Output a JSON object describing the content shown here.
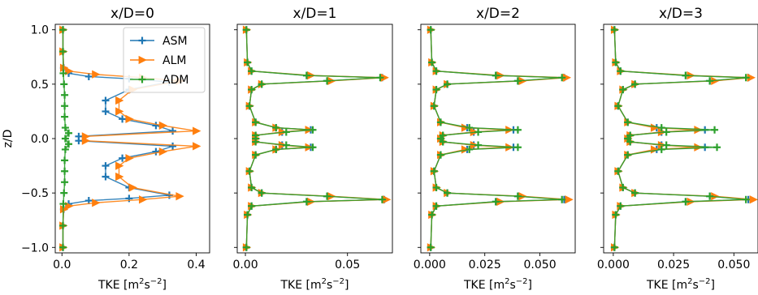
{
  "chart_data": [
    {
      "type": "line",
      "title": "x/D=0",
      "xlabel": "TKE [m$^2$s$^{-2}$]",
      "ylabel": "z/D",
      "xlim": [
        -0.02,
        0.44
      ],
      "ylim": [
        -1.05,
        1.05
      ],
      "xticks": [
        0.0,
        0.2,
        0.4
      ],
      "xticklabels": [
        "0.0",
        "0.2",
        "0.4"
      ],
      "yticks": [
        -1.0,
        -0.5,
        0.0,
        0.5,
        1.0
      ],
      "yticklabels": [
        "−1.0",
        "−0.5",
        "0.0",
        "0.5",
        "1.0"
      ],
      "legend": {
        "position": "top-right",
        "entries": [
          "ASM",
          "ALM",
          "ADM"
        ]
      },
      "series": [
        {
          "name": "ASM",
          "color": "#1f77b4",
          "marker": "plus",
          "z": [
            1.0,
            0.8,
            0.65,
            0.6,
            0.57,
            0.55,
            0.52,
            0.45,
            0.35,
            0.25,
            0.18,
            0.12,
            0.07,
            0.02,
            -0.02,
            -0.07,
            -0.12,
            -0.18,
            -0.25,
            -0.35,
            -0.45,
            -0.52,
            -0.55,
            -0.57,
            -0.6,
            -0.65,
            -0.8,
            -1.0
          ],
          "values": [
            0.003,
            0.003,
            0.005,
            0.02,
            0.08,
            0.2,
            0.32,
            0.2,
            0.13,
            0.13,
            0.18,
            0.28,
            0.33,
            0.05,
            0.05,
            0.33,
            0.28,
            0.18,
            0.13,
            0.13,
            0.2,
            0.32,
            0.2,
            0.08,
            0.02,
            0.005,
            0.003,
            0.003
          ]
        },
        {
          "name": "ALM",
          "color": "#ff7f0e",
          "marker": "triangle-right",
          "z": [
            1.0,
            0.8,
            0.65,
            0.62,
            0.59,
            0.56,
            0.53,
            0.45,
            0.35,
            0.25,
            0.18,
            0.12,
            0.07,
            0.02,
            -0.02,
            -0.07,
            -0.12,
            -0.18,
            -0.25,
            -0.35,
            -0.45,
            -0.53,
            -0.56,
            -0.59,
            -0.62,
            -0.65,
            -0.8,
            -1.0
          ],
          "values": [
            0.003,
            0.003,
            0.005,
            0.02,
            0.1,
            0.24,
            0.35,
            0.21,
            0.17,
            0.17,
            0.2,
            0.3,
            0.4,
            0.07,
            0.07,
            0.4,
            0.3,
            0.2,
            0.17,
            0.17,
            0.21,
            0.35,
            0.24,
            0.1,
            0.02,
            0.005,
            0.003,
            0.003
          ]
        },
        {
          "name": "ADM",
          "color": "#2ca02c",
          "marker": "plus",
          "z": [
            1.0,
            0.8,
            0.6,
            0.5,
            0.4,
            0.3,
            0.2,
            0.1,
            0.05,
            0.0,
            -0.05,
            -0.1,
            -0.2,
            -0.3,
            -0.4,
            -0.5,
            -0.6,
            -0.8,
            -1.0
          ],
          "values": [
            0.003,
            0.003,
            0.004,
            0.006,
            0.008,
            0.008,
            0.008,
            0.01,
            0.02,
            0.01,
            0.02,
            0.01,
            0.008,
            0.008,
            0.008,
            0.006,
            0.004,
            0.003,
            0.003
          ]
        }
      ]
    },
    {
      "type": "line",
      "title": "x/D=1",
      "xlabel": "TKE [m$^2$s$^{-2}$]",
      "xlim": [
        -0.004,
        0.072
      ],
      "ylim": [
        -1.05,
        1.05
      ],
      "xticks": [
        0.0,
        0.05
      ],
      "xticklabels": [
        "0.00",
        "0.05"
      ],
      "series": [
        {
          "name": "ASM",
          "color": "#1f77b4",
          "marker": "plus",
          "z": [
            1.0,
            0.7,
            0.62,
            0.58,
            0.56,
            0.53,
            0.5,
            0.45,
            0.3,
            0.15,
            0.1,
            0.08,
            0.06,
            0.03,
            0.0,
            -0.03,
            -0.06,
            -0.08,
            -0.1,
            -0.15,
            -0.3,
            -0.45,
            -0.5,
            -0.53,
            -0.56,
            -0.58,
            -0.62,
            -0.7,
            -1.0
          ],
          "values": [
            0.0005,
            0.001,
            0.003,
            0.03,
            0.067,
            0.04,
            0.008,
            0.003,
            0.002,
            0.005,
            0.015,
            0.032,
            0.018,
            0.005,
            0.005,
            0.005,
            0.018,
            0.032,
            0.015,
            0.005,
            0.002,
            0.003,
            0.008,
            0.04,
            0.068,
            0.03,
            0.003,
            0.001,
            0.0005
          ]
        },
        {
          "name": "ALM",
          "color": "#ff7f0e",
          "marker": "triangle-right",
          "z": [
            1.0,
            0.7,
            0.62,
            0.58,
            0.56,
            0.53,
            0.5,
            0.45,
            0.3,
            0.15,
            0.1,
            0.08,
            0.06,
            0.03,
            0.0,
            -0.03,
            -0.06,
            -0.08,
            -0.1,
            -0.15,
            -0.3,
            -0.45,
            -0.5,
            -0.53,
            -0.56,
            -0.58,
            -0.62,
            -0.7,
            -1.0
          ],
          "values": [
            0.0005,
            0.001,
            0.003,
            0.032,
            0.068,
            0.042,
            0.008,
            0.003,
            0.002,
            0.005,
            0.015,
            0.031,
            0.018,
            0.005,
            0.005,
            0.005,
            0.018,
            0.031,
            0.015,
            0.005,
            0.002,
            0.003,
            0.008,
            0.042,
            0.069,
            0.032,
            0.003,
            0.001,
            0.0005
          ]
        },
        {
          "name": "ADM",
          "color": "#2ca02c",
          "marker": "plus",
          "z": [
            1.0,
            0.7,
            0.62,
            0.58,
            0.56,
            0.53,
            0.5,
            0.45,
            0.3,
            0.15,
            0.1,
            0.08,
            0.06,
            0.03,
            0.0,
            -0.03,
            -0.06,
            -0.08,
            -0.1,
            -0.15,
            -0.3,
            -0.45,
            -0.5,
            -0.53,
            -0.56,
            -0.58,
            -0.62,
            -0.7,
            -1.0
          ],
          "values": [
            0.0005,
            0.001,
            0.003,
            0.03,
            0.066,
            0.04,
            0.008,
            0.003,
            0.002,
            0.005,
            0.015,
            0.033,
            0.02,
            0.005,
            0.005,
            0.005,
            0.02,
            0.033,
            0.015,
            0.005,
            0.002,
            0.003,
            0.008,
            0.04,
            0.067,
            0.03,
            0.003,
            0.001,
            0.0005
          ]
        }
      ]
    },
    {
      "type": "line",
      "title": "x/D=2",
      "xlabel": "TKE [m$^2$s$^{-2}$]",
      "xlim": [
        -0.004,
        0.066
      ],
      "ylim": [
        -1.05,
        1.05
      ],
      "xticks": [
        0.0,
        0.025,
        0.05
      ],
      "xticklabels": [
        "0.000",
        "0.025",
        "0.050"
      ],
      "series": [
        {
          "name": "ASM",
          "color": "#1f77b4",
          "marker": "plus",
          "z": [
            1.0,
            0.7,
            0.62,
            0.58,
            0.56,
            0.53,
            0.5,
            0.45,
            0.3,
            0.15,
            0.1,
            0.08,
            0.06,
            0.03,
            0.0,
            -0.03,
            -0.06,
            -0.08,
            -0.1,
            -0.15,
            -0.3,
            -0.45,
            -0.5,
            -0.53,
            -0.56,
            -0.58,
            -0.62,
            -0.7,
            -1.0
          ],
          "values": [
            0.0005,
            0.001,
            0.003,
            0.03,
            0.061,
            0.04,
            0.008,
            0.003,
            0.002,
            0.005,
            0.017,
            0.038,
            0.02,
            0.006,
            0.005,
            0.006,
            0.02,
            0.038,
            0.017,
            0.005,
            0.002,
            0.003,
            0.008,
            0.04,
            0.061,
            0.03,
            0.003,
            0.001,
            0.0005
          ]
        },
        {
          "name": "ALM",
          "color": "#ff7f0e",
          "marker": "triangle-right",
          "z": [
            1.0,
            0.7,
            0.62,
            0.58,
            0.56,
            0.53,
            0.5,
            0.45,
            0.3,
            0.15,
            0.1,
            0.08,
            0.06,
            0.03,
            0.0,
            -0.03,
            -0.06,
            -0.08,
            -0.1,
            -0.15,
            -0.3,
            -0.45,
            -0.5,
            -0.53,
            -0.56,
            -0.58,
            -0.62,
            -0.7,
            -1.0
          ],
          "values": [
            0.0005,
            0.001,
            0.003,
            0.032,
            0.062,
            0.042,
            0.008,
            0.003,
            0.002,
            0.005,
            0.016,
            0.036,
            0.02,
            0.006,
            0.005,
            0.006,
            0.02,
            0.036,
            0.016,
            0.005,
            0.002,
            0.003,
            0.008,
            0.042,
            0.063,
            0.032,
            0.003,
            0.001,
            0.0005
          ]
        },
        {
          "name": "ADM",
          "color": "#2ca02c",
          "marker": "plus",
          "z": [
            1.0,
            0.7,
            0.62,
            0.58,
            0.56,
            0.53,
            0.5,
            0.45,
            0.3,
            0.15,
            0.1,
            0.08,
            0.06,
            0.03,
            0.0,
            -0.03,
            -0.06,
            -0.08,
            -0.1,
            -0.15,
            -0.3,
            -0.45,
            -0.5,
            -0.53,
            -0.56,
            -0.58,
            -0.62,
            -0.7,
            -1.0
          ],
          "values": [
            0.0005,
            0.001,
            0.003,
            0.03,
            0.06,
            0.04,
            0.008,
            0.003,
            0.002,
            0.005,
            0.018,
            0.04,
            0.022,
            0.006,
            0.005,
            0.006,
            0.022,
            0.04,
            0.018,
            0.005,
            0.002,
            0.003,
            0.008,
            0.04,
            0.06,
            0.03,
            0.003,
            0.001,
            0.0005
          ]
        }
      ]
    },
    {
      "type": "line",
      "title": "x/D=3",
      "xlabel": "TKE [m$^2$s$^{-2}$]",
      "xlim": [
        -0.004,
        0.06
      ],
      "ylim": [
        -1.05,
        1.05
      ],
      "xticks": [
        0.0,
        0.025,
        0.05
      ],
      "xticklabels": [
        "0.000",
        "0.025",
        "0.050"
      ],
      "series": [
        {
          "name": "ASM",
          "color": "#1f77b4",
          "marker": "plus",
          "z": [
            1.0,
            0.7,
            0.62,
            0.58,
            0.56,
            0.53,
            0.5,
            0.45,
            0.3,
            0.15,
            0.1,
            0.08,
            0.06,
            0.03,
            0.0,
            -0.03,
            -0.06,
            -0.08,
            -0.1,
            -0.15,
            -0.3,
            -0.45,
            -0.5,
            -0.53,
            -0.56,
            -0.58,
            -0.62,
            -0.7,
            -1.0
          ],
          "values": [
            0.0005,
            0.001,
            0.003,
            0.03,
            0.056,
            0.04,
            0.009,
            0.004,
            0.002,
            0.006,
            0.018,
            0.038,
            0.02,
            0.007,
            0.006,
            0.007,
            0.02,
            0.038,
            0.018,
            0.006,
            0.002,
            0.004,
            0.009,
            0.04,
            0.056,
            0.03,
            0.003,
            0.001,
            0.0005
          ]
        },
        {
          "name": "ALM",
          "color": "#ff7f0e",
          "marker": "triangle-right",
          "z": [
            1.0,
            0.7,
            0.62,
            0.58,
            0.56,
            0.53,
            0.5,
            0.45,
            0.3,
            0.15,
            0.1,
            0.08,
            0.06,
            0.03,
            0.0,
            -0.03,
            -0.06,
            -0.08,
            -0.1,
            -0.15,
            -0.3,
            -0.45,
            -0.5,
            -0.53,
            -0.56,
            -0.58,
            -0.62,
            -0.7,
            -1.0
          ],
          "values": [
            0.0005,
            0.001,
            0.003,
            0.032,
            0.057,
            0.042,
            0.009,
            0.004,
            0.002,
            0.006,
            0.017,
            0.035,
            0.02,
            0.007,
            0.006,
            0.007,
            0.02,
            0.035,
            0.017,
            0.006,
            0.002,
            0.004,
            0.009,
            0.042,
            0.058,
            0.032,
            0.003,
            0.001,
            0.0005
          ]
        },
        {
          "name": "ADM",
          "color": "#2ca02c",
          "marker": "plus",
          "z": [
            1.0,
            0.7,
            0.62,
            0.58,
            0.56,
            0.53,
            0.5,
            0.45,
            0.3,
            0.15,
            0.1,
            0.08,
            0.06,
            0.03,
            0.0,
            -0.03,
            -0.06,
            -0.08,
            -0.1,
            -0.15,
            -0.3,
            -0.45,
            -0.5,
            -0.53,
            -0.56,
            -0.58,
            -0.62,
            -0.7,
            -1.0
          ],
          "values": [
            0.0005,
            0.001,
            0.003,
            0.03,
            0.055,
            0.04,
            0.009,
            0.004,
            0.002,
            0.006,
            0.02,
            0.042,
            0.022,
            0.007,
            0.006,
            0.007,
            0.022,
            0.043,
            0.02,
            0.006,
            0.002,
            0.004,
            0.009,
            0.04,
            0.055,
            0.03,
            0.003,
            0.001,
            0.0005
          ]
        }
      ]
    }
  ]
}
